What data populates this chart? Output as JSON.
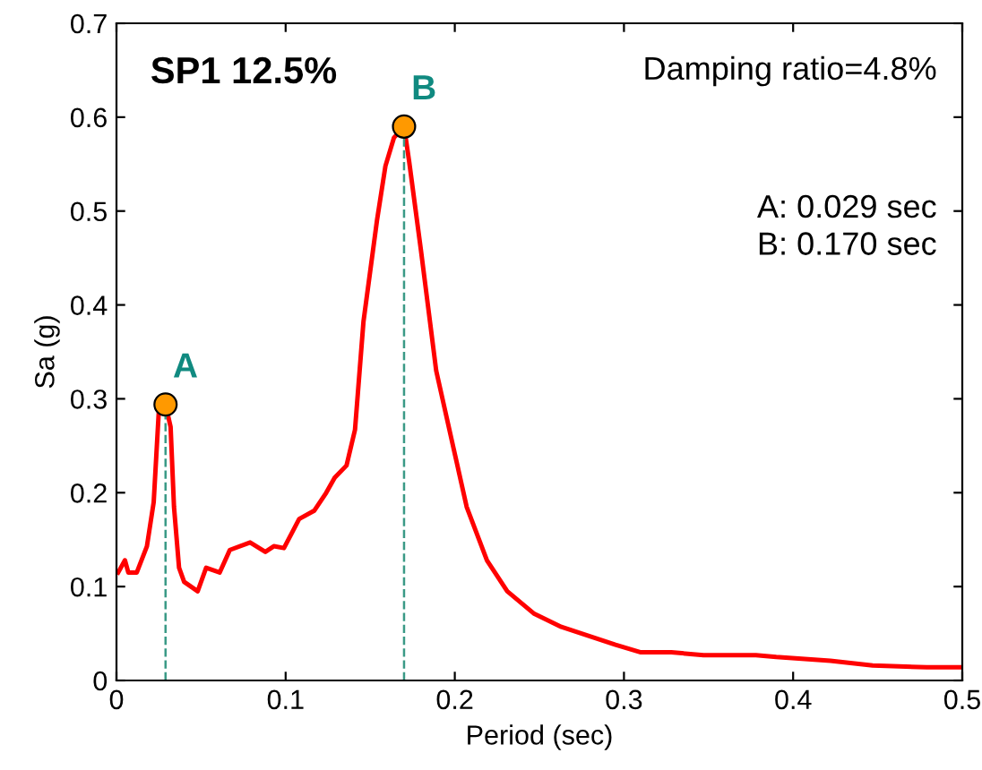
{
  "chart_data": {
    "type": "line",
    "title": "SP1 12.5%",
    "xlabel": "Period (sec)",
    "ylabel": "Sa (g)",
    "xlim": [
      0,
      0.5
    ],
    "ylim": [
      0,
      0.7
    ],
    "xticks": [
      0,
      0.1,
      0.2,
      0.3,
      0.4,
      0.5
    ],
    "yticks": [
      0,
      0.1,
      0.2,
      0.3,
      0.4,
      0.5,
      0.6,
      0.7
    ],
    "grid": false,
    "legend": false,
    "annotations": [
      "Damping ratio=4.8%",
      "A: 0.029 sec\nB: 0.170 sec",
      {
        "text": "A",
        "x": 0.029,
        "y": 0.294
      },
      {
        "text": "B",
        "x": 0.17,
        "y": 0.59
      }
    ],
    "series": [
      {
        "color": "#ff0000",
        "line_style": "solid",
        "marker": "none",
        "x": [
          0.001,
          0.005,
          0.007,
          0.012,
          0.018,
          0.022,
          0.025,
          0.029,
          0.032,
          0.034,
          0.037,
          0.04,
          0.048,
          0.053,
          0.061,
          0.067,
          0.079,
          0.088,
          0.093,
          0.099,
          0.108,
          0.117,
          0.124,
          0.129,
          0.136,
          0.141,
          0.146,
          0.154,
          0.159,
          0.164,
          0.17,
          0.173,
          0.18,
          0.189,
          0.207,
          0.219,
          0.231,
          0.247,
          0.263,
          0.295,
          0.31,
          0.328,
          0.347,
          0.378,
          0.39,
          0.422,
          0.447,
          0.479,
          0.5
        ],
        "values": [
          0.115,
          0.128,
          0.115,
          0.115,
          0.143,
          0.19,
          0.286,
          0.294,
          0.27,
          0.185,
          0.12,
          0.105,
          0.095,
          0.12,
          0.115,
          0.139,
          0.147,
          0.137,
          0.143,
          0.141,
          0.172,
          0.181,
          0.2,
          0.216,
          0.229,
          0.267,
          0.382,
          0.49,
          0.548,
          0.578,
          0.59,
          0.553,
          0.458,
          0.33,
          0.185,
          0.128,
          0.095,
          0.071,
          0.057,
          0.038,
          0.03,
          0.03,
          0.027,
          0.027,
          0.025,
          0.021,
          0.016,
          0.014,
          0.014
        ]
      },
      {
        "color": "#3a9a86",
        "line_style": "dashed",
        "marker": "none",
        "x": [
          0.029,
          0.029
        ],
        "values": [
          0,
          0.294
        ]
      },
      {
        "color": "#3a9a86",
        "line_style": "dashed",
        "marker": "none",
        "x": [
          0.17,
          0.17
        ],
        "values": [
          0,
          0.59
        ]
      },
      {
        "type": "scatter",
        "color": "#ff9900",
        "marker": "circle",
        "x": [
          0.029,
          0.17
        ],
        "values": [
          0.294,
          0.59
        ]
      }
    ]
  }
}
